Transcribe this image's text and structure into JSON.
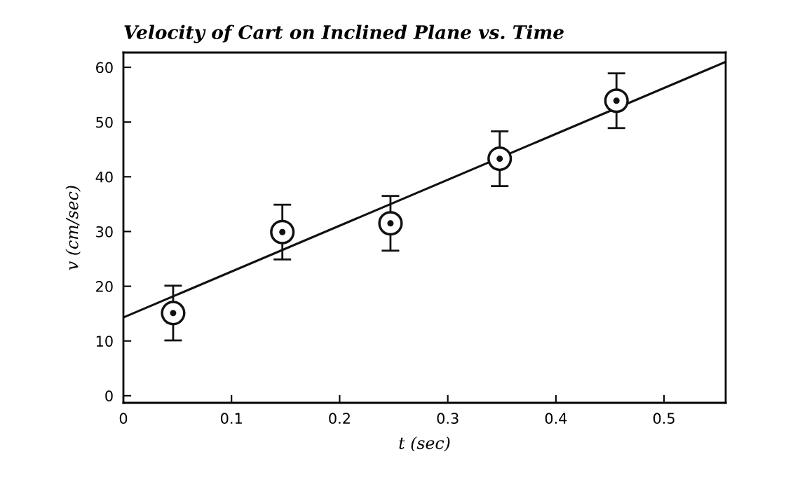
{
  "chart_data": {
    "type": "scatter",
    "title": "Velocity of Cart on Inclined Plane vs. Time",
    "xlabel": "t (sec)",
    "ylabel": "v (cm/sec)",
    "series": [
      {
        "color": "#111111",
        "x": [
          0.046,
          0.147,
          0.247,
          0.348,
          0.456
        ],
        "values": [
          15.1,
          29.9,
          31.5,
          43.3,
          53.9
        ],
        "errors": [
          5,
          5,
          5,
          5,
          5
        ],
        "marker": "circle"
      },
      {
        "type": "line",
        "color": "#111111",
        "x": [
          0,
          0.557
        ],
        "values": [
          14.3,
          61.0
        ],
        "marker": "none",
        "line_style": "solid"
      }
    ],
    "xlim": [
      0,
      0.557
    ],
    "xticks": [
      {
        "value": 0,
        "label": "0"
      },
      0.1,
      0.2,
      0.3,
      0.4,
      0.5
    ],
    "ylim": [
      -1.3,
      62.7
    ],
    "yticks": [
      0,
      10,
      20,
      30,
      40,
      50,
      60
    ],
    "grid": false,
    "legend": false
  }
}
